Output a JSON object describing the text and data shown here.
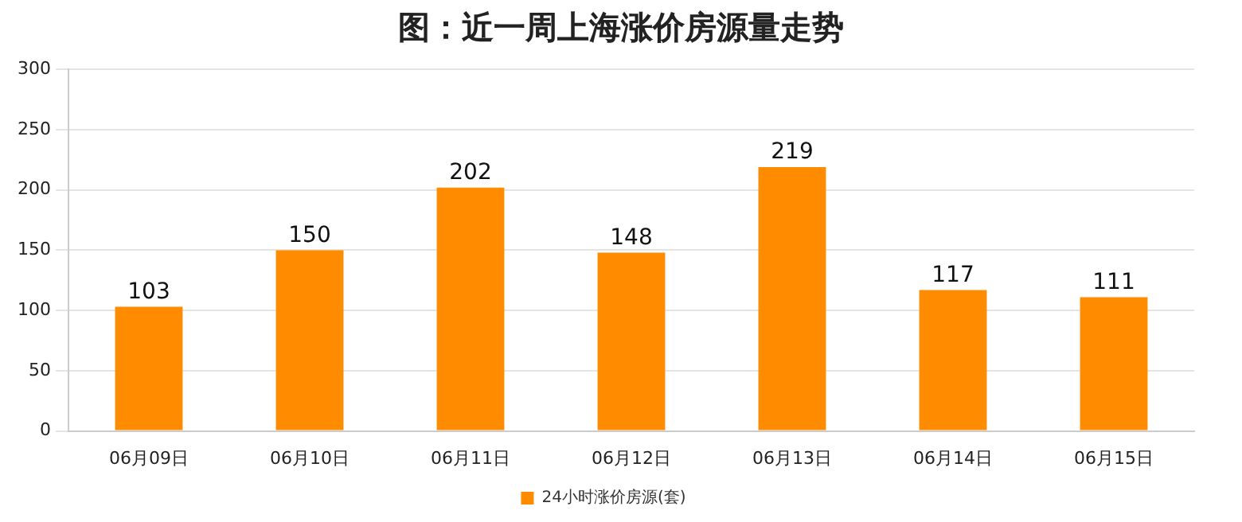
{
  "chart_data": {
    "type": "bar",
    "title": "图：近一周上海涨价房源量走势",
    "categories": [
      "06月09日",
      "06月10日",
      "06月11日",
      "06月12日",
      "06月13日",
      "06月14日",
      "06月15日"
    ],
    "series": [
      {
        "name": "24小时涨价房源(套)",
        "color": "#ff8c00",
        "values": [
          103,
          150,
          202,
          148,
          219,
          117,
          111
        ]
      }
    ],
    "ylim": [
      0,
      300
    ],
    "yticks": [
      0,
      50,
      100,
      150,
      200,
      250,
      300
    ],
    "grid": "y",
    "legend": "bottom",
    "data_labels": true
  }
}
